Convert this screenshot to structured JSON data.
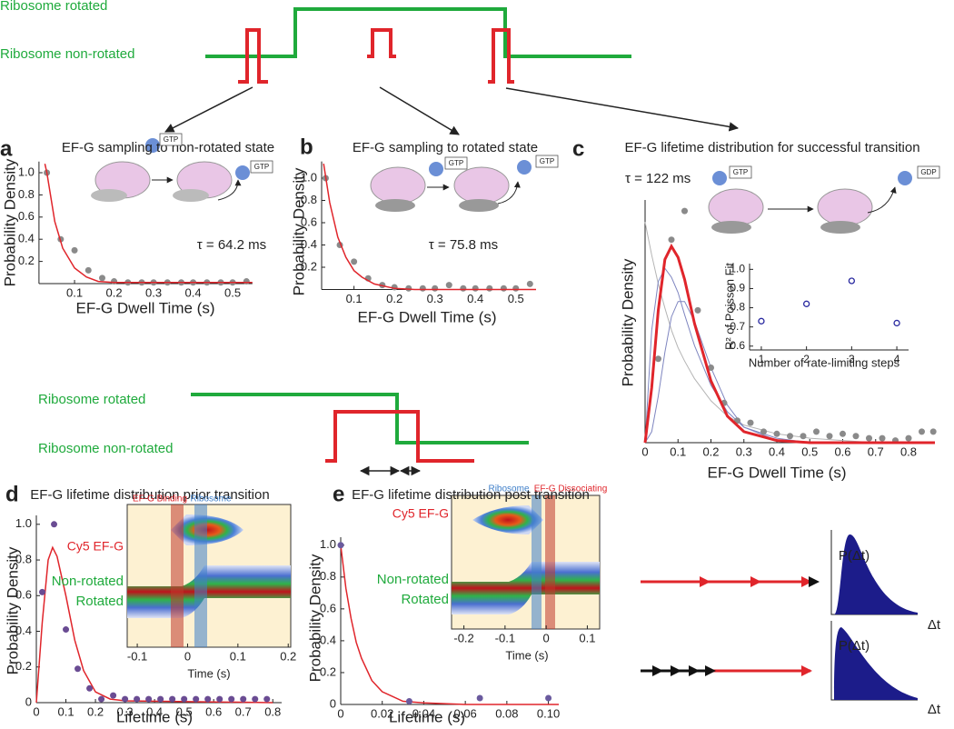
{
  "diagram_top": {
    "rotated": "Ribosome rotated",
    "non_rotated": "Ribosome non-rotated"
  },
  "diagram_mid": {
    "rotated": "Ribosome rotated",
    "non_rotated": "Ribosome non-rotated"
  },
  "schemes": [
    {
      "ylabel": "P(Δt)",
      "xlabel": "Δt"
    },
    {
      "ylabel": "P(Δt)",
      "xlabel": "Δt"
    }
  ],
  "chart_data": [
    {
      "type": "scatter",
      "label": "a",
      "title": "EF-G sampling to non-rotated state",
      "xlabel": "EF-G Dwell Time (s)",
      "ylabel": "Probability Density",
      "annotation": "τ = 64.2 ms",
      "icon_labels": [
        "GTP",
        "GTP"
      ],
      "xlim": [
        0.01,
        0.55
      ],
      "ylim": [
        0,
        1.1
      ],
      "xticks": [
        0.1,
        0.2,
        0.3,
        0.4,
        0.5
      ],
      "yticks": [
        0.2,
        0.4,
        0.6,
        0.8,
        {
          "value": 1,
          "label": "1.0"
        }
      ],
      "series": [
        {
          "mode": "markers",
          "color": "#8a8a8a",
          "x": [
            0.03,
            0.065,
            0.1,
            0.135,
            0.17,
            0.2,
            0.235,
            0.27,
            0.3,
            0.335,
            0.37,
            0.4,
            0.435,
            0.47,
            0.5,
            0.535
          ],
          "values": [
            1.0,
            0.4,
            0.3,
            0.12,
            0.05,
            0.02,
            0.01,
            0.01,
            0.01,
            0.01,
            0.01,
            0.01,
            0.01,
            0.01,
            0.01,
            0.02
          ]
        },
        {
          "mode": "line",
          "color": "#e0252b",
          "line_width": 1.5,
          "x": [
            0.025,
            0.03,
            0.05,
            0.07,
            0.1,
            0.13,
            0.16,
            0.2,
            0.3,
            0.55
          ],
          "values": [
            1.08,
            1.0,
            0.56,
            0.32,
            0.14,
            0.06,
            0.02,
            0.01,
            0.01,
            0.01
          ]
        }
      ]
    },
    {
      "type": "scatter",
      "label": "b",
      "title": "EF-G sampling to rotated state",
      "xlabel": "EF-G Dwell Time (s)",
      "ylabel": "Probability Density",
      "annotation": "τ = 75.8 ms",
      "icon_labels": [
        "GTP",
        "GTP"
      ],
      "xlim": [
        0.02,
        0.55
      ],
      "ylim": [
        0,
        1.15
      ],
      "xticks": [
        0.1,
        0.2,
        0.3,
        0.4,
        0.5
      ],
      "yticks": [
        0.2,
        0.4,
        0.6,
        0.8,
        {
          "value": 1,
          "label": "1.0"
        }
      ],
      "series": [
        {
          "mode": "markers",
          "color": "#8a8a8a",
          "x": [
            0.03,
            0.065,
            0.1,
            0.135,
            0.17,
            0.2,
            0.235,
            0.27,
            0.3,
            0.335,
            0.37,
            0.4,
            0.435,
            0.47,
            0.5,
            0.535
          ],
          "values": [
            1.0,
            0.4,
            0.25,
            0.1,
            0.04,
            0.02,
            0.01,
            0.01,
            0.01,
            0.04,
            0.01,
            0.01,
            0.01,
            0.01,
            0.01,
            0.05
          ]
        },
        {
          "mode": "line",
          "color": "#e0252b",
          "line_width": 1.5,
          "x": [
            0.025,
            0.04,
            0.06,
            0.08,
            0.1,
            0.12,
            0.15,
            0.2,
            0.25,
            0.55
          ],
          "values": [
            1.13,
            0.78,
            0.47,
            0.29,
            0.17,
            0.11,
            0.05,
            0.01,
            0.0,
            0.0
          ]
        }
      ]
    },
    {
      "type": "scatter",
      "label": "c",
      "title": "EF-G lifetime distribution for successful transition",
      "xlabel": "EF-G Dwell Time (s)",
      "ylabel": "Probability Density",
      "annotation": "τ = 122 ms",
      "icon_labels": [
        "GTP",
        "GDP"
      ],
      "xlim": [
        0,
        0.88
      ],
      "ylim": [
        0,
        1.1
      ],
      "xticks": [
        0,
        0.1,
        0.2,
        0.3,
        0.4,
        0.5,
        0.6,
        0.7,
        0.8
      ],
      "series": [
        {
          "mode": "line",
          "color": "#b4b4b4",
          "line_width": 1,
          "x": [
            0,
            0.02,
            0.04,
            0.06,
            0.08,
            0.1,
            0.12,
            0.15,
            0.2,
            0.25,
            0.3,
            0.4,
            0.5,
            0.6,
            0.7,
            0.88
          ],
          "values": [
            1.0,
            0.85,
            0.72,
            0.61,
            0.51,
            0.43,
            0.37,
            0.29,
            0.19,
            0.12,
            0.08,
            0.04,
            0.02,
            0.01,
            0.0,
            0.0
          ]
        },
        {
          "mode": "line",
          "color": "#7f86c0",
          "line_width": 1,
          "x": [
            0,
            0.02,
            0.04,
            0.06,
            0.08,
            0.1,
            0.12,
            0.15,
            0.2,
            0.25,
            0.3,
            0.4,
            0.5,
            0.88
          ],
          "values": [
            0,
            0.51,
            0.73,
            0.79,
            0.75,
            0.68,
            0.58,
            0.44,
            0.26,
            0.14,
            0.07,
            0.02,
            0.0,
            0.0
          ]
        },
        {
          "mode": "line",
          "color": "#7f86c0",
          "line_width": 1,
          "x": [
            0,
            0.02,
            0.04,
            0.06,
            0.08,
            0.1,
            0.12,
            0.15,
            0.2,
            0.25,
            0.3,
            0.4,
            0.5,
            0.88
          ],
          "values": [
            0,
            0.05,
            0.21,
            0.41,
            0.57,
            0.64,
            0.64,
            0.55,
            0.34,
            0.17,
            0.07,
            0.01,
            0.0,
            0.0
          ]
        },
        {
          "mode": "markers",
          "color": "#8a8a8a",
          "x": [
            0.04,
            0.08,
            0.12,
            0.16,
            0.2,
            0.24,
            0.28,
            0.32,
            0.36,
            0.4,
            0.44,
            0.48,
            0.52,
            0.56,
            0.6,
            0.64,
            0.68,
            0.72,
            0.76,
            0.8,
            0.84,
            0.875
          ],
          "values": [
            0.38,
            0.92,
            1.05,
            0.6,
            0.34,
            0.18,
            0.1,
            0.09,
            0.05,
            0.04,
            0.03,
            0.03,
            0.05,
            0.03,
            0.04,
            0.03,
            0.02,
            0.02,
            0.01,
            0.02,
            0.05,
            0.05
          ]
        },
        {
          "mode": "line",
          "color": "#e0252b",
          "line_width": 3,
          "x": [
            0,
            0.02,
            0.04,
            0.06,
            0.08,
            0.1,
            0.12,
            0.15,
            0.2,
            0.25,
            0.3,
            0.4,
            0.5,
            0.88
          ],
          "values": [
            0,
            0.25,
            0.6,
            0.83,
            0.89,
            0.84,
            0.74,
            0.54,
            0.28,
            0.12,
            0.05,
            0.01,
            0.0,
            0.0
          ]
        }
      ]
    },
    {
      "type": "scatter",
      "xlabel": "Number of rate-limiting steps",
      "ylabel": "R² of Poisson Fit",
      "xlim": [
        0.74,
        4.26
      ],
      "ylim": [
        0.58,
        1.03
      ],
      "xticks": [
        1,
        2,
        3,
        4
      ],
      "yticks": [
        0.6,
        0.7,
        0.8,
        0.9,
        {
          "value": 1,
          "label": "1.0"
        }
      ],
      "series": [
        {
          "mode": "markers",
          "marker": "open",
          "color": "#2a2aa0",
          "x": [
            1,
            2,
            3,
            4
          ],
          "values": [
            0.73,
            0.82,
            0.94,
            0.72
          ]
        }
      ]
    },
    {
      "type": "scatter",
      "label": "d",
      "title": "EF-G lifetime distribution prior transition",
      "xlabel": "Lifetime (s)",
      "ylabel": "Probability Density",
      "xlim": [
        0,
        0.83
      ],
      "ylim": [
        0,
        1.05
      ],
      "xticks": [
        0,
        0.1,
        0.2,
        0.3,
        0.4,
        0.5,
        0.6,
        0.7,
        0.8
      ],
      "yticks": [
        0,
        0.2,
        0.4,
        0.6,
        0.8,
        {
          "value": 1,
          "label": "1.0"
        }
      ],
      "series": [
        {
          "mode": "line",
          "color": "#e0252b",
          "line_width": 1.5,
          "x": [
            0,
            0.02,
            0.04,
            0.055,
            0.07,
            0.1,
            0.13,
            0.16,
            0.2,
            0.25,
            0.3,
            0.8
          ],
          "values": [
            0,
            0.45,
            0.8,
            0.87,
            0.82,
            0.6,
            0.35,
            0.18,
            0.06,
            0.02,
            0.01,
            0.0
          ]
        },
        {
          "mode": "markers",
          "color": "#6a4c93",
          "x": [
            0.02,
            0.06,
            0.1,
            0.14,
            0.18,
            0.22,
            0.26,
            0.3,
            0.34,
            0.38,
            0.42,
            0.46,
            0.5,
            0.54,
            0.58,
            0.62,
            0.66,
            0.7,
            0.74,
            0.78
          ],
          "values": [
            0.62,
            1.0,
            0.41,
            0.19,
            0.08,
            0.02,
            0.04,
            0.02,
            0.02,
            0.02,
            0.02,
            0.02,
            0.02,
            0.02,
            0.02,
            0.02,
            0.02,
            0.02,
            0.02,
            0.02
          ]
        }
      ]
    },
    {
      "type": "heatmap",
      "xlabel": "Time (s)",
      "band_labels": [
        "EF-G Binding",
        "Ribosome"
      ],
      "row_labels": [
        "Cy5 EF-G",
        "Non-rotated",
        "Rotated"
      ],
      "xlim": [
        -0.12,
        0.205
      ],
      "xticks": [
        -0.1,
        0,
        0.1,
        0.2
      ]
    },
    {
      "type": "scatter",
      "label": "e",
      "title": "EF-G lifetime distribution post transition",
      "xlabel": "Lifetime (s)",
      "ylabel": "Probability Density",
      "xlim": [
        0,
        0.105
      ],
      "ylim": [
        0,
        1.05
      ],
      "xticks": [
        0,
        0.02,
        0.04,
        0.06,
        0.08,
        {
          "value": 0.1,
          "label": "0.10"
        }
      ],
      "yticks": [
        0,
        0.2,
        0.4,
        0.6,
        0.8,
        {
          "value": 1,
          "label": "1.0"
        }
      ],
      "series": [
        {
          "mode": "line",
          "color": "#e0252b",
          "line_width": 1.5,
          "x": [
            0,
            0.0025,
            0.005,
            0.0075,
            0.01,
            0.015,
            0.02,
            0.03,
            0.04,
            0.06,
            0.105
          ],
          "values": [
            1.0,
            0.73,
            0.54,
            0.39,
            0.29,
            0.15,
            0.08,
            0.02,
            0.01,
            0.0,
            0.0
          ]
        },
        {
          "mode": "markers",
          "color": "#6a5a9e",
          "x": [
            0,
            0.033,
            0.067,
            0.1
          ],
          "values": [
            1.0,
            0.02,
            0.04,
            0.04
          ]
        }
      ]
    },
    {
      "type": "heatmap",
      "xlabel": "Time (s)",
      "band_labels": [
        "Ribosome",
        "EF-G Dissociating"
      ],
      "row_labels": [
        "Cy5 EF-G",
        "Non-rotated",
        "Rotated"
      ],
      "xlim": [
        -0.23,
        0.13
      ],
      "xticks": [
        -0.2,
        -0.1,
        0,
        0.1
      ]
    }
  ]
}
